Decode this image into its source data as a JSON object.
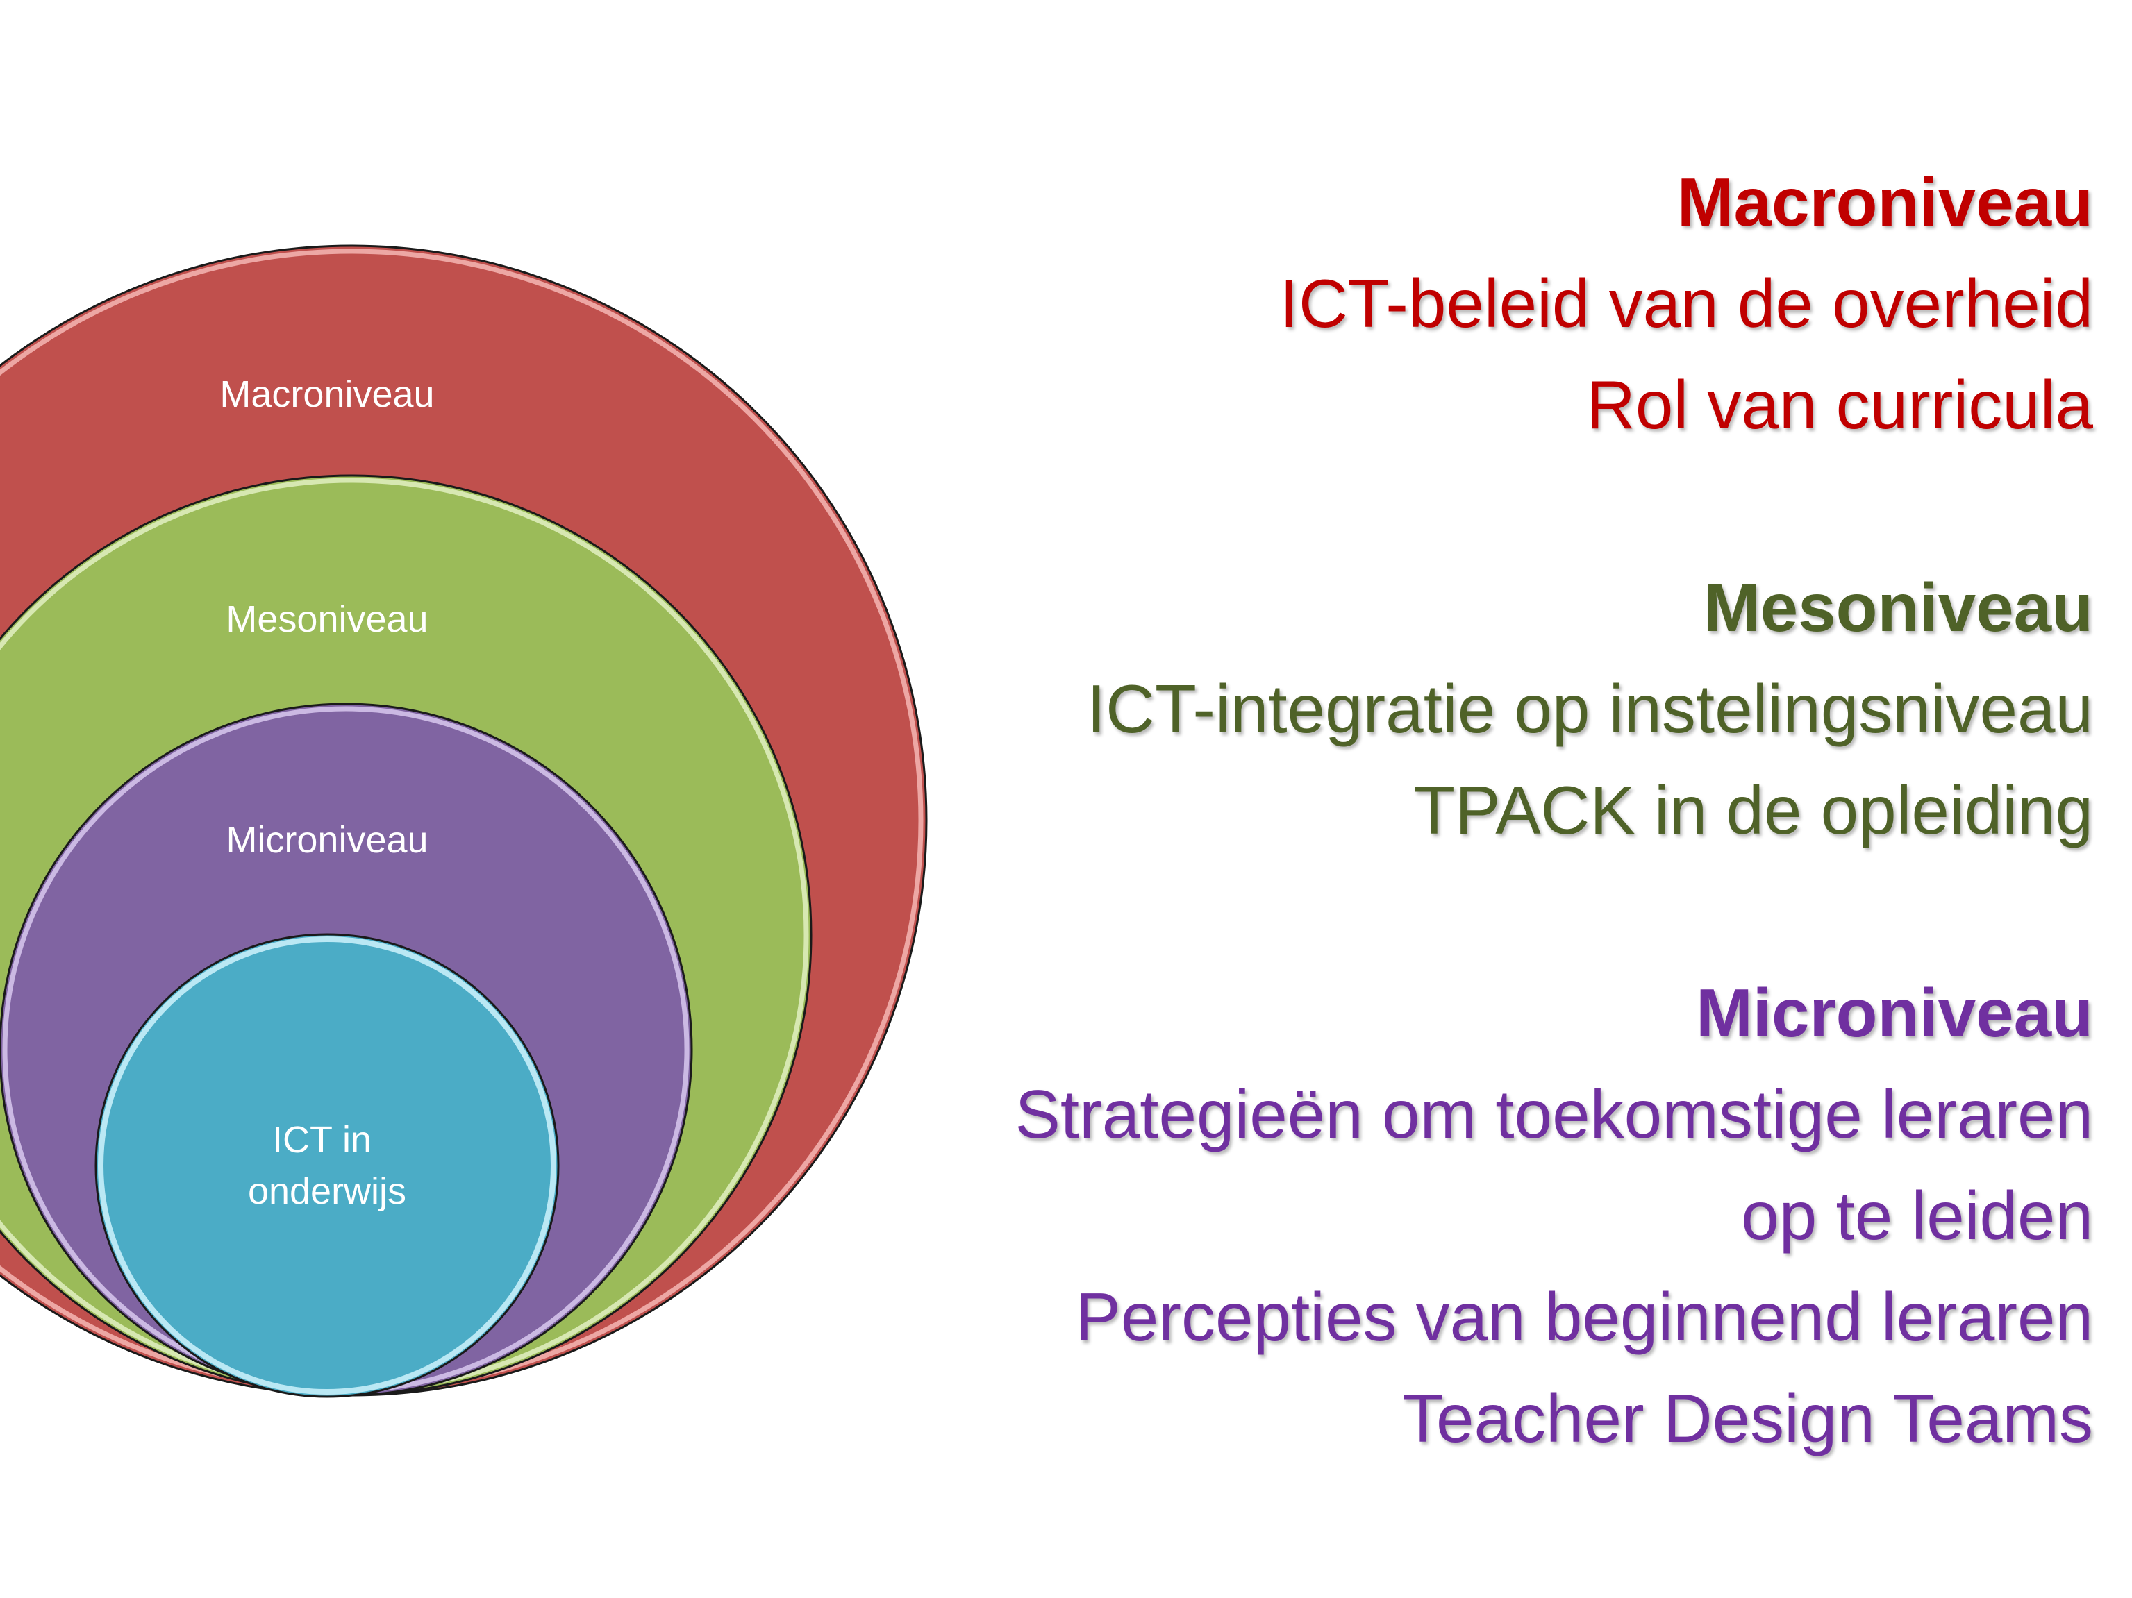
{
  "diagram": {
    "circles": [
      {
        "label": "Macroniveau",
        "color": "#C0504D"
      },
      {
        "label": "Mesoniveau",
        "color": "#9BBB59"
      },
      {
        "label": "Microniveau",
        "color": "#8064A2"
      },
      {
        "label": "ICT in onderwijs",
        "label_lines": [
          "ICT in",
          "onderwijs"
        ],
        "color": "#4BACC6"
      }
    ]
  },
  "levels": [
    {
      "heading": "Macroniveau",
      "color": "#C00000",
      "lines": [
        "ICT-beleid van de overheid",
        "Rol van curricula"
      ]
    },
    {
      "heading": "Mesoniveau",
      "color": "#4F6228",
      "lines": [
        "ICT-integratie op instelingsniveau",
        "TPACK in de opleiding"
      ]
    },
    {
      "heading": "Microniveau",
      "color": "#7030A0",
      "lines": [
        "Strategieën om toekomstige leraren",
        "op te leiden",
        "Percepties van beginnend leraren",
        "Teacher Design Teams"
      ]
    }
  ]
}
